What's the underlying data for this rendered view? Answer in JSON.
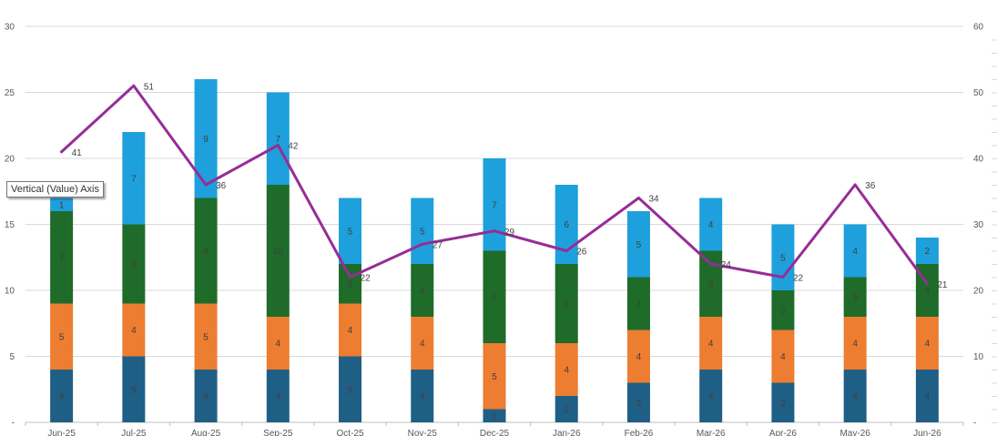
{
  "chart_data": {
    "type": "bar",
    "stacked": true,
    "categories": [
      "Jun-25",
      "Jul-25",
      "Aug-25",
      "Sep-25",
      "Oct-25",
      "Nov-25",
      "Dec-25",
      "Jan-26",
      "Feb-26",
      "Mar-26",
      "Apr-26",
      "May-26",
      "Jun-26"
    ],
    "series": [
      {
        "type": "bar",
        "axis": "left",
        "color": "#1f5f86",
        "values": [
          4,
          5,
          4,
          4,
          5,
          4,
          1,
          2,
          3,
          4,
          3,
          4,
          4
        ]
      },
      {
        "type": "bar",
        "axis": "left",
        "color": "#ed7d31",
        "values": [
          5,
          4,
          5,
          4,
          4,
          4,
          5,
          4,
          4,
          4,
          4,
          4,
          4
        ]
      },
      {
        "type": "bar",
        "axis": "left",
        "color": "#1e6b2a",
        "values": [
          7,
          6,
          8,
          10,
          3,
          4,
          7,
          6,
          4,
          5,
          3,
          3,
          4
        ]
      },
      {
        "type": "bar",
        "axis": "left",
        "color": "#1ea0dc",
        "values": [
          1,
          7,
          9,
          7,
          5,
          5,
          7,
          6,
          5,
          4,
          5,
          4,
          2
        ]
      },
      {
        "type": "line",
        "axis": "right",
        "color": "#962d97",
        "values": [
          41,
          51,
          36,
          42,
          22,
          27,
          29,
          26,
          34,
          24,
          22,
          36,
          21
        ]
      }
    ],
    "ylim": [
      0,
      30
    ],
    "y2lim": [
      0,
      60
    ],
    "yticks": [
      "-",
      "5",
      "10",
      "15",
      "20",
      "25",
      "30"
    ],
    "y2ticks": [
      "-",
      "10",
      "20",
      "30",
      "40",
      "50",
      "60"
    ],
    "grid": true,
    "legend": "none"
  },
  "tooltip": {
    "text": "Vertical (Value) Axis"
  }
}
